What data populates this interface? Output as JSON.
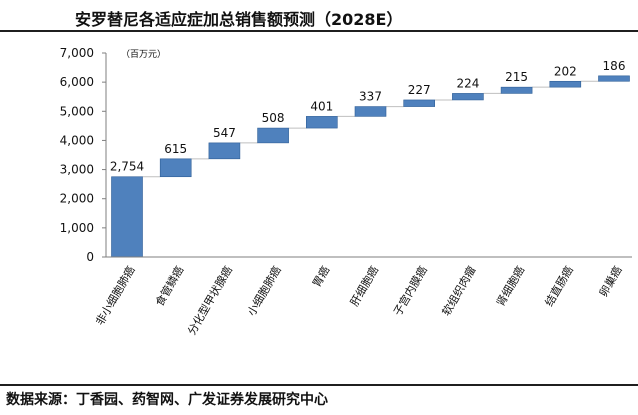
{
  "header": {
    "title": "安罗替尼各适应症加总销售额预测（2028E）"
  },
  "footer": {
    "source": "数据来源：丁香园、药智网、广发证券发展研究中心"
  },
  "colors": {
    "bar": "#4F81BD",
    "bar_edge": "#2E5E96",
    "connector": "#BFBFBF",
    "axis": "#7F7F7F"
  },
  "chart_data": {
    "type": "bar",
    "subtype": "waterfall",
    "title": "安罗替尼各适应症加总销售额预测（2028E）",
    "unit": "（百万元）",
    "categories": [
      "非小细胞肺癌",
      "食管鳞癌",
      "分化型甲状腺癌",
      "小细胞肺癌",
      "胃癌",
      "肝细胞癌",
      "子宫内膜癌",
      "软组织肉瘤",
      "肾细胞癌",
      "结直肠癌",
      "卵巢癌"
    ],
    "values": [
      2754,
      615,
      547,
      508,
      401,
      337,
      227,
      224,
      215,
      202,
      186
    ],
    "data_labels": [
      "2,754",
      "615",
      "547",
      "508",
      "401",
      "337",
      "227",
      "224",
      "215",
      "202",
      "186"
    ],
    "ylim": [
      0,
      7000
    ],
    "yticks": [
      0,
      1000,
      2000,
      3000,
      4000,
      5000,
      6000,
      7000
    ],
    "ytick_labels": [
      "0",
      "1,000",
      "2,000",
      "3,000",
      "4,000",
      "5,000",
      "6,000",
      "7,000"
    ],
    "grid": false
  }
}
